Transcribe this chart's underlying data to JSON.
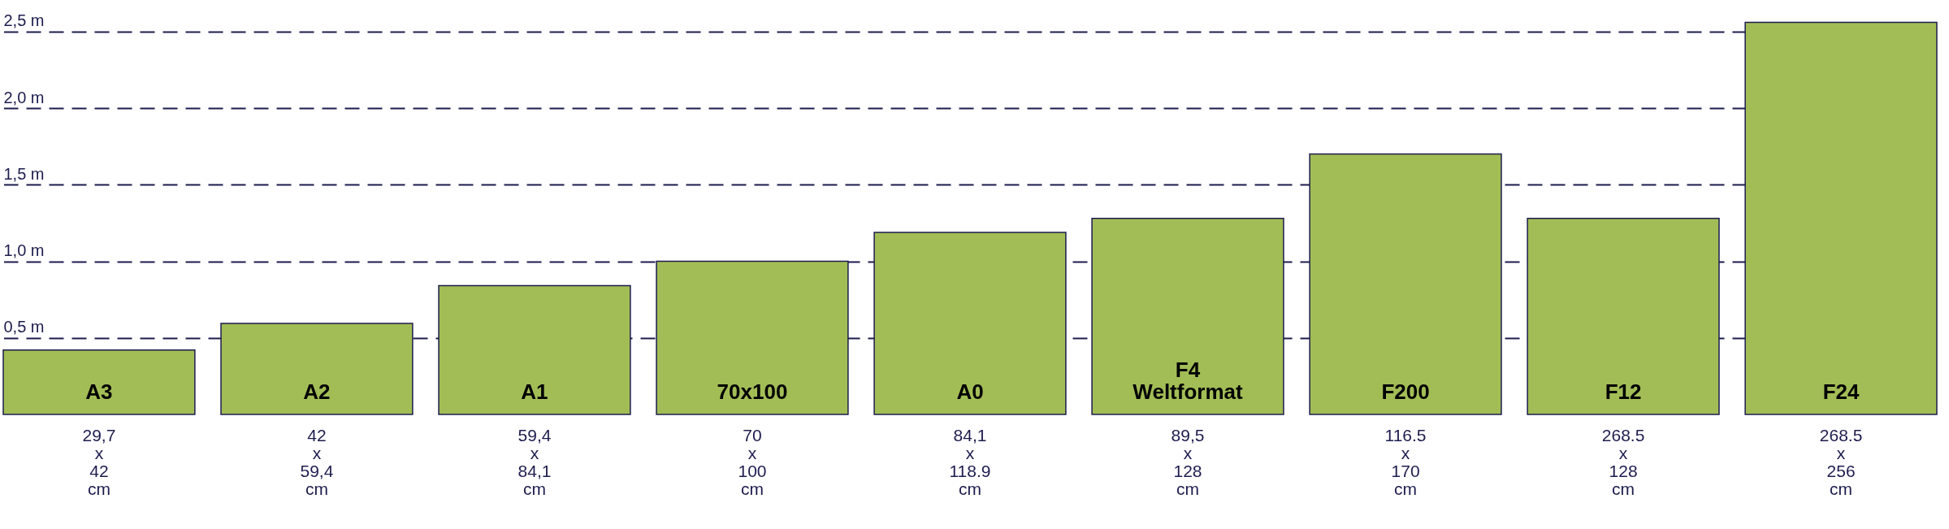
{
  "chart_data": {
    "type": "bar",
    "categories": [
      "A3",
      "A2",
      "A1",
      "70x100",
      "A0",
      "F4\nWeltformat",
      "F200",
      "F12",
      "F24"
    ],
    "values": [
      0.42,
      0.594,
      0.841,
      1.0,
      1.189,
      1.28,
      1.7,
      1.28,
      2.56
    ],
    "annotations": [
      "29,7\nx\n42\ncm",
      "42\nx\n59,4\ncm",
      "59,4\nx\n84,1\ncm",
      "70\nx\n100\ncm",
      "84,1\nx\n118.9\ncm",
      "89,5\nx\n128\ncm",
      "116.5\nx\n170\ncm",
      "268.5\nx\n128\ncm",
      "268.5\nx\n256\ncm"
    ],
    "color": "#a3bd56",
    "ylim": [
      0,
      2.6
    ],
    "yticks": [
      {
        "value": 0.5,
        "label": "0,5 m"
      },
      {
        "value": 1.0,
        "label": "1,0 m"
      },
      {
        "value": 1.5,
        "label": "1,5 m"
      },
      {
        "value": 2.0,
        "label": "2,0 m"
      },
      {
        "value": 2.5,
        "label": "2,5 m"
      }
    ],
    "grid": "y"
  }
}
